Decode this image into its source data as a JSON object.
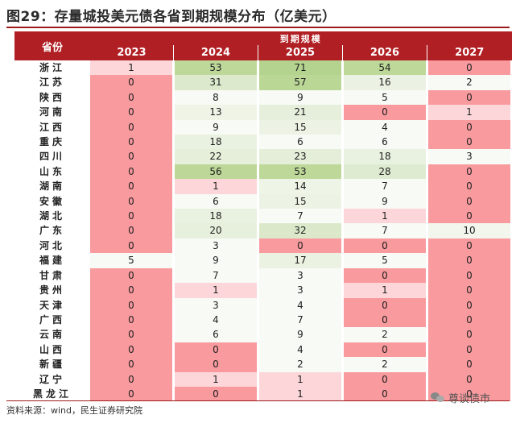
{
  "title": "图29：存量城投美元债各省到期规模分布（亿美元）",
  "header": {
    "province_label": "省份",
    "group_label": "到期规模",
    "years": [
      "2023",
      "2024",
      "2025",
      "2026",
      "2027"
    ]
  },
  "rows": [
    {
      "province": "浙江",
      "values": [
        1,
        53,
        71,
        54,
        0
      ]
    },
    {
      "province": "江苏",
      "values": [
        0,
        31,
        57,
        16,
        2
      ]
    },
    {
      "province": "陕西",
      "values": [
        0,
        8,
        9,
        5,
        0
      ]
    },
    {
      "province": "河南",
      "values": [
        0,
        13,
        21,
        0,
        1
      ]
    },
    {
      "province": "江西",
      "values": [
        0,
        9,
        15,
        4,
        0
      ]
    },
    {
      "province": "重庆",
      "values": [
        0,
        18,
        6,
        6,
        0
      ]
    },
    {
      "province": "四川",
      "values": [
        0,
        22,
        23,
        18,
        3
      ]
    },
    {
      "province": "山东",
      "values": [
        0,
        56,
        53,
        28,
        0
      ]
    },
    {
      "province": "湖南",
      "values": [
        0,
        1,
        14,
        7,
        0
      ]
    },
    {
      "province": "安徽",
      "values": [
        0,
        6,
        15,
        9,
        0
      ]
    },
    {
      "province": "湖北",
      "values": [
        0,
        18,
        7,
        1,
        0
      ]
    },
    {
      "province": "广东",
      "values": [
        0,
        20,
        32,
        7,
        10
      ]
    },
    {
      "province": "河北",
      "values": [
        0,
        3,
        0,
        0,
        0
      ]
    },
    {
      "province": "福建",
      "values": [
        5,
        9,
        17,
        5,
        0
      ]
    },
    {
      "province": "甘肃",
      "values": [
        0,
        7,
        3,
        0,
        0
      ]
    },
    {
      "province": "贵州",
      "values": [
        0,
        1,
        3,
        1,
        0
      ]
    },
    {
      "province": "天津",
      "values": [
        0,
        3,
        4,
        0,
        0
      ]
    },
    {
      "province": "广西",
      "values": [
        0,
        4,
        7,
        0,
        0
      ]
    },
    {
      "province": "云南",
      "values": [
        0,
        6,
        9,
        2,
        0
      ]
    },
    {
      "province": "山西",
      "values": [
        0,
        0,
        4,
        0,
        0
      ]
    },
    {
      "province": "新疆",
      "values": [
        0,
        0,
        2,
        2,
        0
      ]
    },
    {
      "province": "辽宁",
      "values": [
        0,
        1,
        1,
        0,
        0
      ]
    },
    {
      "province": "黑龙江",
      "values": [
        0,
        0,
        1,
        0,
        0
      ]
    }
  ],
  "colors": {
    "zero": "#f99a9e",
    "low": "#fcd6d8",
    "neutral": "#ffffff",
    "high": "#b8d48e",
    "header": "#b01f24"
  },
  "source": "资料来源：wind，民生证券研究院",
  "watermark": "尊谈债市"
}
